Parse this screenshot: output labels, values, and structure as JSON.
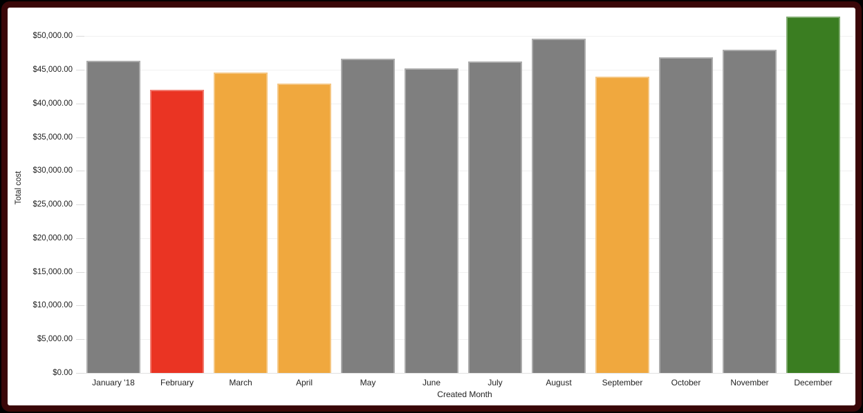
{
  "page": {
    "background": "#000000",
    "frame_border_color": "#3a0708",
    "card_background": "#ffffff"
  },
  "chart_data": {
    "type": "bar",
    "xlabel": "Created Month",
    "ylabel": "Total cost",
    "categories": [
      "January '18",
      "February",
      "March",
      "April",
      "May",
      "June",
      "July",
      "August",
      "September",
      "October",
      "November",
      "December"
    ],
    "values": [
      46400,
      42000,
      44600,
      43000,
      46700,
      45200,
      46200,
      49600,
      44000,
      46900,
      48000,
      52900
    ],
    "bar_colors": [
      "#7F7F7F",
      "#EA3423",
      "#F0A83E",
      "#F0A83E",
      "#7F7F7F",
      "#7F7F7F",
      "#7F7F7F",
      "#7F7F7F",
      "#F0A83E",
      "#7F7F7F",
      "#7F7F7F",
      "#3A7D21"
    ],
    "palette": {
      "default_gray": "#7F7F7F",
      "alert_red": "#EA3423",
      "warning_orange": "#F0A83E",
      "good_green": "#3A7D21"
    },
    "ylim": [
      0,
      50000
    ],
    "ytick_step": 5000,
    "ytick_labels": [
      "$0.00",
      "$5,000.00",
      "$10,000.00",
      "$15,000.00",
      "$20,000.00",
      "$25,000.00",
      "$30,000.00",
      "$35,000.00",
      "$40,000.00",
      "$45,000.00",
      "$50,000.00"
    ],
    "grid": true,
    "legend": "none",
    "plot_background": "#ffffff",
    "gridline_color": "#f0f0f0",
    "axis_text_color": "#212121"
  }
}
